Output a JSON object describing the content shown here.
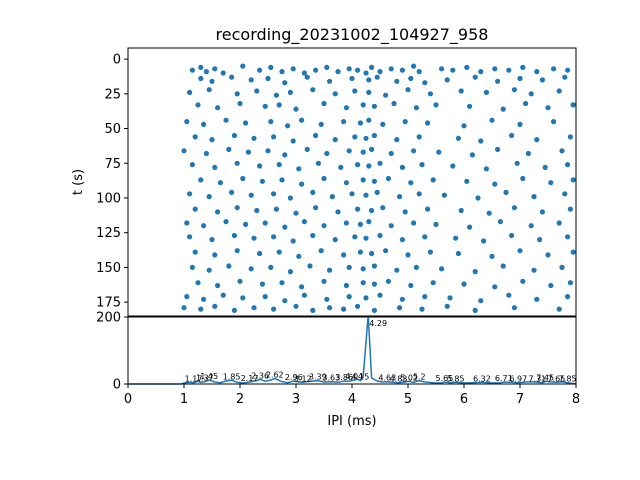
{
  "chart_data": [
    {
      "type": "scatter",
      "title": "recording_20231002_104927_958",
      "xlabel": "",
      "ylabel": "t (s)",
      "xlim": [
        0,
        8
      ],
      "ylim": [
        185,
        -8
      ],
      "y_inverted": true,
      "y_ticks": [
        0,
        25,
        50,
        75,
        100,
        125,
        150,
        175
      ],
      "color": "#1f77b4",
      "point_rows": [
        {
          "x": [
            1.15,
            1.3,
            1.4,
            1.55,
            1.7,
            2.05,
            2.35,
            2.55,
            2.75,
            2.95,
            3.15,
            3.35,
            3.55,
            3.75,
            3.95,
            4.1,
            4.25,
            4.35,
            4.5,
            4.7,
            4.9,
            5.1,
            5.2,
            5.6,
            5.8,
            6.05,
            6.3,
            6.55,
            6.8,
            7.05,
            7.3,
            7.6,
            7.85
          ],
          "y": [
            8,
            6,
            9,
            7,
            10,
            5,
            8,
            6,
            9,
            7,
            10,
            8,
            6,
            9,
            7,
            8,
            10,
            6,
            9,
            7,
            8,
            5,
            9,
            7,
            8,
            6,
            9,
            7,
            8,
            6,
            9,
            7,
            8
          ]
        },
        {
          "x": [
            1.3,
            1.5,
            1.85,
            2.2,
            2.5,
            2.8,
            3.2,
            3.6,
            4.0,
            4.3,
            4.45,
            4.8,
            5.05,
            5.3,
            5.7,
            6.2,
            6.6,
            7.0,
            7.4,
            7.8
          ],
          "y": [
            14,
            16,
            13,
            15,
            14,
            17,
            13,
            16,
            14,
            15,
            13,
            16,
            14,
            17,
            15,
            13,
            16,
            14,
            15,
            13
          ]
        },
        {
          "x": [
            1.1,
            1.45,
            1.95,
            2.3,
            2.65,
            2.9,
            3.3,
            3.7,
            4.05,
            4.3,
            4.6,
            5.0,
            5.4,
            5.95,
            6.4,
            6.9,
            7.2,
            7.7
          ],
          "y": [
            24,
            22,
            25,
            23,
            26,
            24,
            22,
            25,
            23,
            24,
            26,
            22,
            25,
            23,
            24,
            22,
            25,
            23
          ]
        },
        {
          "x": [
            1.25,
            1.6,
            2.0,
            2.45,
            2.7,
            3.0,
            3.5,
            3.9,
            4.2,
            4.4,
            4.75,
            5.15,
            5.5,
            6.1,
            6.7,
            7.1,
            7.5,
            7.95
          ],
          "y": [
            33,
            35,
            32,
            34,
            33,
            36,
            32,
            35,
            33,
            34,
            32,
            35,
            33,
            34,
            36,
            32,
            35,
            33
          ]
        },
        {
          "x": [
            1.05,
            1.35,
            1.75,
            2.1,
            2.55,
            2.85,
            3.1,
            3.45,
            3.85,
            4.15,
            4.3,
            4.55,
            4.95,
            5.35,
            6.0,
            6.5,
            7.0,
            7.6
          ],
          "y": [
            45,
            47,
            44,
            46,
            45,
            48,
            44,
            47,
            45,
            46,
            44,
            47,
            45,
            46,
            48,
            44,
            47,
            45
          ]
        },
        {
          "x": [
            1.2,
            1.5,
            1.9,
            2.25,
            2.6,
            2.95,
            3.35,
            3.7,
            4.05,
            4.25,
            4.4,
            4.8,
            5.2,
            5.9,
            6.3,
            6.85,
            7.3,
            7.9
          ],
          "y": [
            56,
            58,
            55,
            57,
            56,
            59,
            55,
            58,
            56,
            57,
            55,
            58,
            56,
            57,
            59,
            55,
            58,
            56
          ]
        },
        {
          "x": [
            1.0,
            1.4,
            1.8,
            2.15,
            2.5,
            2.8,
            3.2,
            3.55,
            3.95,
            4.2,
            4.35,
            4.7,
            5.1,
            5.55,
            6.15,
            6.6,
            7.15,
            7.75
          ],
          "y": [
            66,
            68,
            65,
            67,
            66,
            69,
            65,
            68,
            66,
            67,
            65,
            68,
            66,
            67,
            69,
            65,
            68,
            66
          ]
        },
        {
          "x": [
            1.15,
            1.55,
            1.95,
            2.35,
            2.7,
            3.05,
            3.4,
            3.8,
            4.1,
            4.3,
            4.5,
            4.9,
            5.25,
            5.8,
            6.4,
            6.95,
            7.45,
            7.85
          ],
          "y": [
            76,
            78,
            75,
            77,
            76,
            79,
            75,
            78,
            76,
            77,
            75,
            78,
            76,
            77,
            79,
            75,
            78,
            76
          ]
        },
        {
          "x": [
            1.3,
            1.65,
            2.05,
            2.4,
            2.75,
            3.1,
            3.5,
            3.9,
            4.2,
            4.4,
            4.65,
            5.05,
            5.45,
            6.05,
            6.55,
            7.05,
            7.55,
            7.95
          ],
          "y": [
            87,
            89,
            86,
            88,
            87,
            90,
            86,
            89,
            87,
            88,
            86,
            89,
            87,
            88,
            90,
            86,
            89,
            87
          ]
        },
        {
          "x": [
            1.1,
            1.45,
            1.85,
            2.2,
            2.6,
            2.9,
            3.3,
            3.65,
            4.0,
            4.25,
            4.45,
            4.85,
            5.2,
            5.65,
            6.25,
            6.75,
            7.25,
            7.8
          ],
          "y": [
            97,
            99,
            96,
            98,
            97,
            100,
            96,
            99,
            97,
            98,
            96,
            99,
            97,
            98,
            100,
            96,
            99,
            97
          ]
        },
        {
          "x": [
            1.2,
            1.6,
            1.95,
            2.3,
            2.65,
            3.0,
            3.35,
            3.75,
            4.1,
            4.35,
            4.55,
            4.95,
            5.35,
            5.95,
            6.45,
            6.9,
            7.4,
            7.9
          ],
          "y": [
            108,
            110,
            107,
            109,
            108,
            111,
            107,
            110,
            108,
            109,
            107,
            110,
            108,
            109,
            111,
            107,
            110,
            108
          ]
        },
        {
          "x": [
            1.05,
            1.35,
            1.75,
            2.1,
            2.45,
            2.8,
            3.15,
            3.5,
            3.9,
            4.15,
            4.3,
            4.7,
            5.1,
            5.5,
            6.1,
            6.65,
            7.2,
            7.7
          ],
          "y": [
            118,
            120,
            117,
            119,
            118,
            121,
            117,
            120,
            118,
            119,
            117,
            120,
            118,
            119,
            121,
            117,
            120,
            118
          ]
        },
        {
          "x": [
            1.1,
            1.5,
            1.9,
            2.25,
            2.6,
            2.95,
            3.3,
            3.7,
            4.05,
            4.25,
            4.5,
            4.9,
            5.3,
            5.85,
            6.35,
            6.85,
            7.35,
            7.85
          ],
          "y": [
            128,
            130,
            127,
            129,
            128,
            131,
            127,
            130,
            128,
            129,
            127,
            130,
            128,
            129,
            131,
            127,
            130,
            128
          ]
        },
        {
          "x": [
            1.2,
            1.55,
            1.95,
            2.35,
            2.7,
            3.05,
            3.45,
            3.85,
            4.15,
            4.35,
            4.6,
            5.0,
            5.4,
            5.9,
            6.5,
            7.0,
            7.5,
            7.95
          ],
          "y": [
            139,
            141,
            138,
            140,
            139,
            142,
            138,
            141,
            139,
            140,
            138,
            141,
            139,
            140,
            142,
            138,
            141,
            139
          ]
        },
        {
          "x": [
            1.15,
            1.45,
            1.8,
            2.2,
            2.55,
            2.9,
            3.25,
            3.6,
            3.95,
            4.2,
            4.4,
            4.8,
            5.15,
            5.6,
            6.2,
            6.7,
            7.25,
            7.75
          ],
          "y": [
            150,
            152,
            149,
            151,
            150,
            153,
            149,
            152,
            150,
            151,
            149,
            152,
            150,
            151,
            153,
            149,
            152,
            150
          ]
        },
        {
          "x": [
            1.25,
            1.6,
            2.0,
            2.4,
            2.75,
            3.1,
            3.5,
            3.9,
            4.2,
            4.4,
            4.65,
            5.05,
            5.45,
            6.0,
            6.55,
            7.05,
            7.55,
            7.9
          ],
          "y": [
            161,
            163,
            160,
            162,
            161,
            164,
            160,
            163,
            161,
            162,
            160,
            163,
            161,
            162,
            164,
            160,
            163,
            161
          ]
        },
        {
          "x": [
            1.05,
            1.35,
            1.7,
            2.05,
            2.45,
            2.8,
            3.15,
            3.55,
            3.95,
            4.25,
            4.5,
            4.9,
            5.3,
            5.75,
            6.3,
            6.8,
            7.3,
            7.85
          ],
          "y": [
            171,
            173,
            170,
            172,
            171,
            174,
            170,
            173,
            171,
            172,
            170,
            173,
            171,
            172,
            174,
            170,
            173,
            171
          ]
        },
        {
          "x": [
            1.0,
            1.3,
            1.55,
            1.9,
            2.25,
            2.6,
            3.0,
            3.3,
            3.6,
            3.85,
            4.1,
            4.4,
            4.85,
            5.25,
            5.7,
            6.2,
            6.9,
            7.7
          ],
          "y": [
            179,
            180,
            178,
            181,
            179,
            180,
            178,
            181,
            179,
            180,
            178,
            181,
            179,
            180,
            178,
            181,
            179,
            180
          ]
        }
      ]
    },
    {
      "type": "line",
      "title": "",
      "xlabel": "IPI (ms)",
      "ylabel": "",
      "xlim": [
        0,
        8
      ],
      "ylim": [
        0,
        200
      ],
      "x_ticks": [
        0,
        1,
        2,
        3,
        4,
        5,
        6,
        7,
        8
      ],
      "y_ticks": [
        0,
        200
      ],
      "color": "#1f77b4",
      "x": [
        0,
        0.5,
        0.95,
        1.0,
        1.1,
        1.17,
        1.25,
        1.3,
        1.37,
        1.45,
        1.55,
        1.65,
        1.75,
        1.85,
        1.95,
        2.05,
        2.17,
        2.3,
        2.36,
        2.45,
        2.55,
        2.62,
        2.75,
        2.85,
        2.96,
        3.05,
        3.12,
        3.25,
        3.39,
        3.5,
        3.63,
        3.75,
        3.86,
        3.95,
        4.04,
        4.1,
        4.15,
        4.2,
        4.29,
        4.35,
        4.45,
        4.55,
        4.63,
        4.73,
        4.83,
        4.95,
        5.02,
        5.1,
        5.2,
        5.3,
        5.45,
        5.6,
        5.65,
        5.75,
        5.85,
        6.0,
        6.15,
        6.32,
        6.5,
        6.65,
        6.71,
        6.85,
        6.97,
        7.1,
        7.2,
        7.31,
        7.4,
        7.45,
        7.55,
        7.65,
        7.75,
        7.85,
        8.0
      ],
      "y": [
        0,
        0,
        0,
        3,
        5,
        4,
        8,
        5,
        7,
        12,
        6,
        4,
        9,
        11,
        5,
        3,
        6,
        10,
        14,
        8,
        12,
        16,
        7,
        4,
        9,
        6,
        5,
        8,
        10,
        6,
        7,
        5,
        9,
        8,
        12,
        14,
        10,
        22,
        206,
        18,
        9,
        6,
        7,
        5,
        4,
        6,
        8,
        5,
        10,
        6,
        4,
        3,
        6,
        4,
        5,
        3,
        4,
        5,
        3,
        4,
        6,
        5,
        4,
        6,
        7,
        5,
        4,
        8,
        6,
        5,
        7,
        4,
        0
      ],
      "peak_labels": [
        {
          "x": 1.17,
          "y": 4,
          "text": "1.17"
        },
        {
          "x": 1.37,
          "y": 7,
          "text": "1.37"
        },
        {
          "x": 1.45,
          "y": 12,
          "text": "1.45"
        },
        {
          "x": 1.85,
          "y": 11,
          "text": "1.85"
        },
        {
          "x": 2.17,
          "y": 6,
          "text": "2.17"
        },
        {
          "x": 2.36,
          "y": 14,
          "text": "2.36"
        },
        {
          "x": 2.62,
          "y": 16,
          "text": "2.62"
        },
        {
          "x": 2.96,
          "y": 9,
          "text": "2.96"
        },
        {
          "x": 3.12,
          "y": 5,
          "text": "3.12"
        },
        {
          "x": 3.39,
          "y": 10,
          "text": "3.39"
        },
        {
          "x": 3.63,
          "y": 7,
          "text": "3.63"
        },
        {
          "x": 3.86,
          "y": 9,
          "text": "3.86"
        },
        {
          "x": 4.04,
          "y": 12,
          "text": "4.04"
        },
        {
          "x": 4.15,
          "y": 10,
          "text": "4.15"
        },
        {
          "x": 4.29,
          "y": 206,
          "text": "4.29"
        },
        {
          "x": 4.63,
          "y": 7,
          "text": "4.63"
        },
        {
          "x": 4.83,
          "y": 4,
          "text": "4.83"
        },
        {
          "x": 5.02,
          "y": 8,
          "text": "5.02"
        },
        {
          "x": 5.2,
          "y": 10,
          "text": "5.2"
        },
        {
          "x": 5.65,
          "y": 6,
          "text": "5.65"
        },
        {
          "x": 5.85,
          "y": 5,
          "text": "5.85"
        },
        {
          "x": 6.32,
          "y": 5,
          "text": "6.32"
        },
        {
          "x": 6.71,
          "y": 6,
          "text": "6.71"
        },
        {
          "x": 6.97,
          "y": 4,
          "text": "6.97"
        },
        {
          "x": 7.31,
          "y": 5,
          "text": "7.31"
        },
        {
          "x": 7.45,
          "y": 8,
          "text": "7.45"
        },
        {
          "x": 7.65,
          "y": 5,
          "text": "7.65"
        },
        {
          "x": 7.85,
          "y": 4,
          "text": "7.85"
        }
      ]
    }
  ]
}
